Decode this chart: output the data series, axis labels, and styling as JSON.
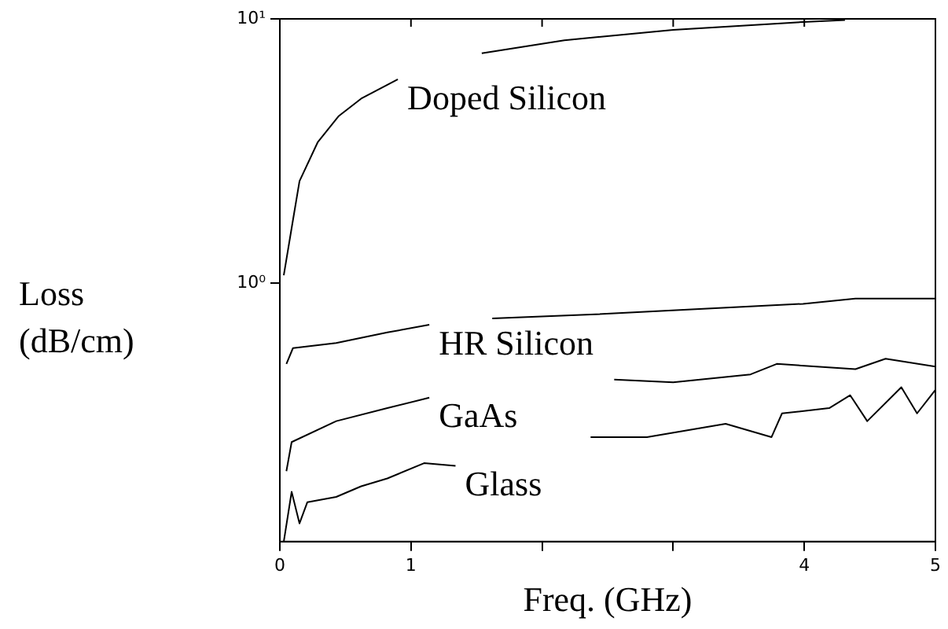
{
  "chart_data": {
    "type": "line",
    "xlabel": "Freq. (GHz)",
    "ylabel": "Loss (dB/cm)",
    "log": "y",
    "xlim": [
      0,
      5
    ],
    "xticks": [
      0,
      1,
      {
        "value": 2,
        "label": null
      },
      {
        "value": 3,
        "label": null
      },
      4,
      5
    ],
    "ylim": [
      0.105,
      10
    ],
    "yticks": [
      {
        "value": 1,
        "label": "10⁰"
      },
      {
        "value": 10,
        "label": "10¹"
      }
    ],
    "grid": false,
    "legend": false,
    "marker": "none",
    "line_style": "solid",
    "series": [
      {
        "name": "Doped Silicon",
        "color": "#000000",
        "x": [
          0.03,
          0.1,
          0.15,
          0.29,
          0.45,
          0.62,
          0.9,
          1.2,
          1.54,
          2.17,
          3.0,
          3.99,
          4.31
        ],
        "values": [
          1.07,
          1.73,
          2.43,
          3.42,
          4.29,
          4.99,
          5.9,
          null,
          7.41,
          8.3,
          9.09,
          9.73,
          9.9
        ]
      },
      {
        "name": "HR Silicon",
        "color": "#000000",
        "x": [
          0.05,
          0.1,
          0.43,
          0.82,
          1.14,
          1.4,
          1.62,
          2.41,
          3.2,
          3.99,
          4.39,
          5
        ],
        "values": [
          0.494,
          0.567,
          0.593,
          0.65,
          0.695,
          null,
          0.734,
          0.761,
          0.797,
          0.834,
          0.873,
          0.873
        ]
      },
      {
        "name": "GaAs",
        "color": "#000000",
        "x": [
          0.05,
          0.09,
          0.43,
          0.82,
          1.14,
          2.0,
          2.55,
          3.0,
          3.59,
          3.79,
          4.39,
          4.62,
          5
        ],
        "values": [
          0.194,
          0.25,
          0.3,
          0.336,
          0.368,
          null,
          0.431,
          0.421,
          0.451,
          0.494,
          0.472,
          0.517,
          0.483
        ]
      },
      {
        "name": "Glass",
        "color": "#000000",
        "x": [
          0.03,
          0.09,
          0.15,
          0.21,
          0.43,
          0.62,
          0.82,
          1.1,
          1.34,
          2.0,
          2.37,
          2.8,
          3.4,
          3.75,
          3.83,
          4.19,
          4.35,
          4.48,
          4.74,
          4.86,
          5
        ],
        "values": [
          0.105,
          0.162,
          0.123,
          0.148,
          0.155,
          0.17,
          0.182,
          0.208,
          0.203,
          null,
          0.261,
          0.261,
          0.293,
          0.261,
          0.321,
          0.336,
          0.376,
          0.3,
          0.403,
          0.321,
          0.394
        ]
      }
    ]
  }
}
